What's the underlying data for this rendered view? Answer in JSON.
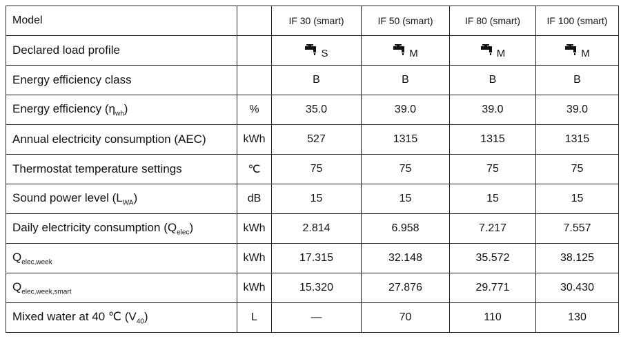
{
  "table": {
    "header": {
      "label": "Model",
      "columns": [
        "IF 30 (smart)",
        "IF 50 (smart)",
        "IF 80 (smart)",
        "IF 100 (smart)"
      ]
    },
    "rows": [
      {
        "label": "Declared load profile",
        "values": [
          "S",
          "M",
          "M",
          "M"
        ]
      },
      {
        "label": "Energy efficiency class",
        "values": [
          "B",
          "B",
          "B",
          "B"
        ]
      },
      {
        "label": "Energy efficiency (η",
        "sub": "wh",
        "tail": ")",
        "unit": "%",
        "values": [
          "35.0",
          "39.0",
          "39.0",
          "39.0"
        ]
      },
      {
        "label": "Annual electricity consumption (AEC)",
        "unit": "kWh",
        "values": [
          "527",
          "1315",
          "1315",
          "1315"
        ]
      },
      {
        "label": "Thermostat temperature settings",
        "unit": "℃",
        "values": [
          "75",
          "75",
          "75",
          "75"
        ]
      },
      {
        "label": "Sound power level (L",
        "sub": "WA",
        "tail": ")",
        "unit": "dB",
        "values": [
          "15",
          "15",
          "15",
          "15"
        ]
      },
      {
        "label": "Daily electricity consumption (Q",
        "sub": "elec",
        "tail": ")",
        "unit": "kWh",
        "values": [
          "2.814",
          "6.958",
          "7.217",
          "7.557"
        ]
      },
      {
        "label": "Q",
        "sub": "elec,week",
        "unit": "kWh",
        "values": [
          "17.315",
          "32.148",
          "35.572",
          "38.125"
        ]
      },
      {
        "label": "Q",
        "sub": "elec,week,smart",
        "unit": "kWh",
        "values": [
          "15.320",
          "27.876",
          "29.771",
          "30.430"
        ]
      },
      {
        "label": "Mixed water at 40 ℃ (V",
        "sub": "40",
        "tail": ")",
        "unit": "L",
        "values": [
          "—",
          "70",
          "110",
          "130"
        ]
      }
    ]
  }
}
